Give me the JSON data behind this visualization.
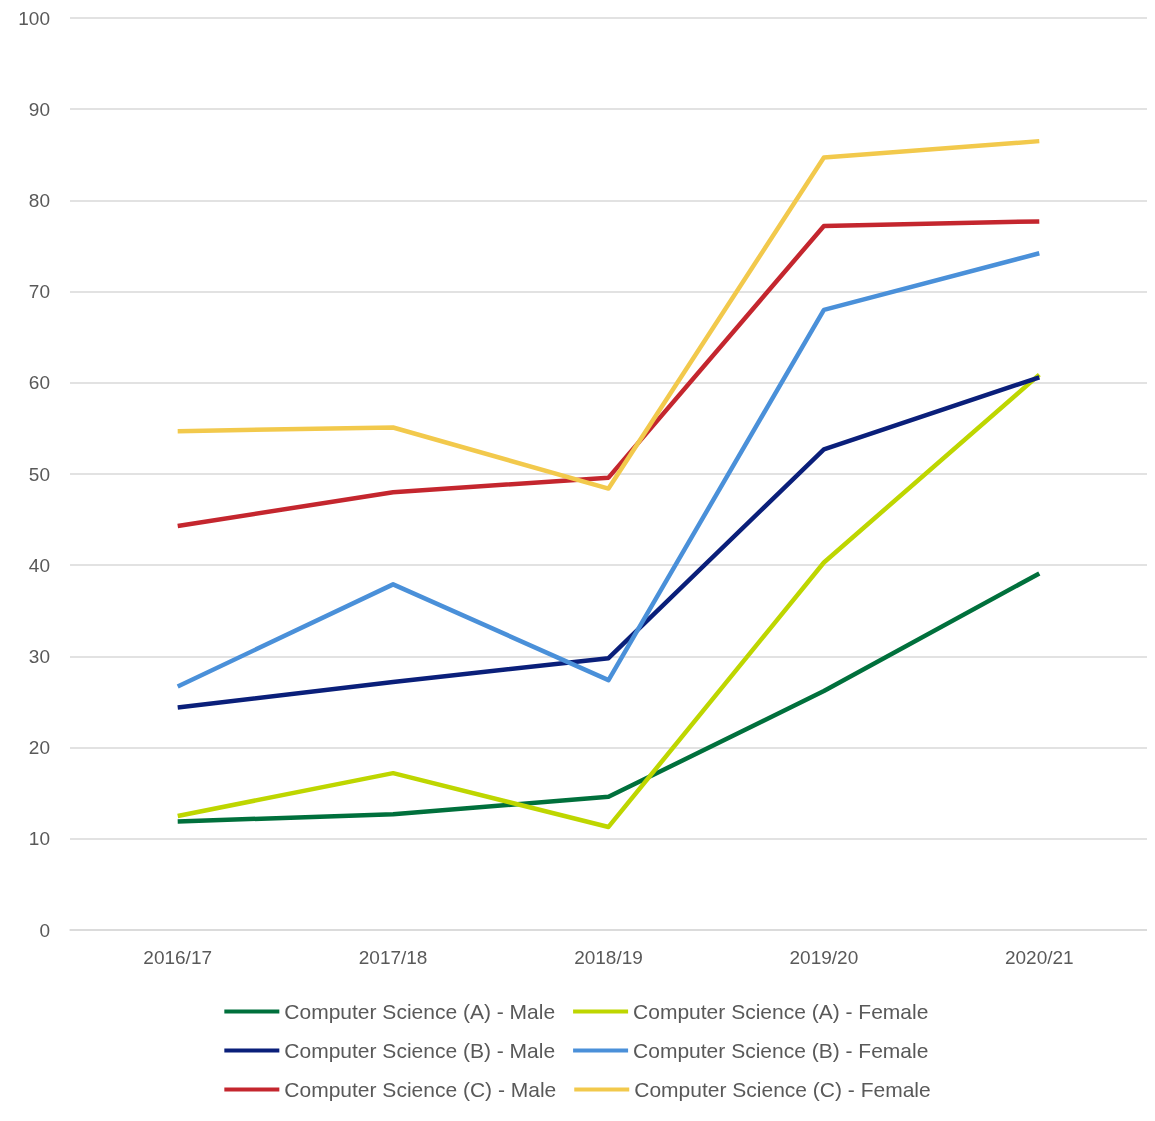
{
  "chart_data": {
    "type": "line",
    "categories": [
      "2016/17",
      "2017/18",
      "2018/19",
      "2019/20",
      "2020/21"
    ],
    "series": [
      {
        "name": "Computer Science (A) - Male",
        "color": "#00703c",
        "values": [
          11.9,
          12.7,
          14.6,
          26.2,
          39.1
        ]
      },
      {
        "name": "Computer Science (A) - Female",
        "color": "#bed600",
        "values": [
          12.5,
          17.2,
          11.3,
          40.3,
          60.9
        ]
      },
      {
        "name": "Computer Science (B) - Male",
        "color": "#0a1f7a",
        "values": [
          24.4,
          27.2,
          29.8,
          52.7,
          60.6
        ]
      },
      {
        "name": "Computer Science (B) - Female",
        "color": "#4a90d9",
        "values": [
          26.7,
          37.9,
          27.4,
          68.0,
          74.2
        ]
      },
      {
        "name": "Computer Science (C) - Male",
        "color": "#c4262e",
        "values": [
          44.3,
          48.0,
          49.6,
          77.2,
          77.7
        ]
      },
      {
        "name": "Computer Science (C) - Female",
        "color": "#f2c94c",
        "values": [
          54.7,
          55.1,
          48.4,
          84.7,
          86.5
        ]
      }
    ],
    "ylim": [
      0,
      100
    ],
    "yticks": [
      0,
      10,
      20,
      30,
      40,
      50,
      60,
      70,
      80,
      90,
      100
    ],
    "grid": "y",
    "legend": "bottom"
  }
}
